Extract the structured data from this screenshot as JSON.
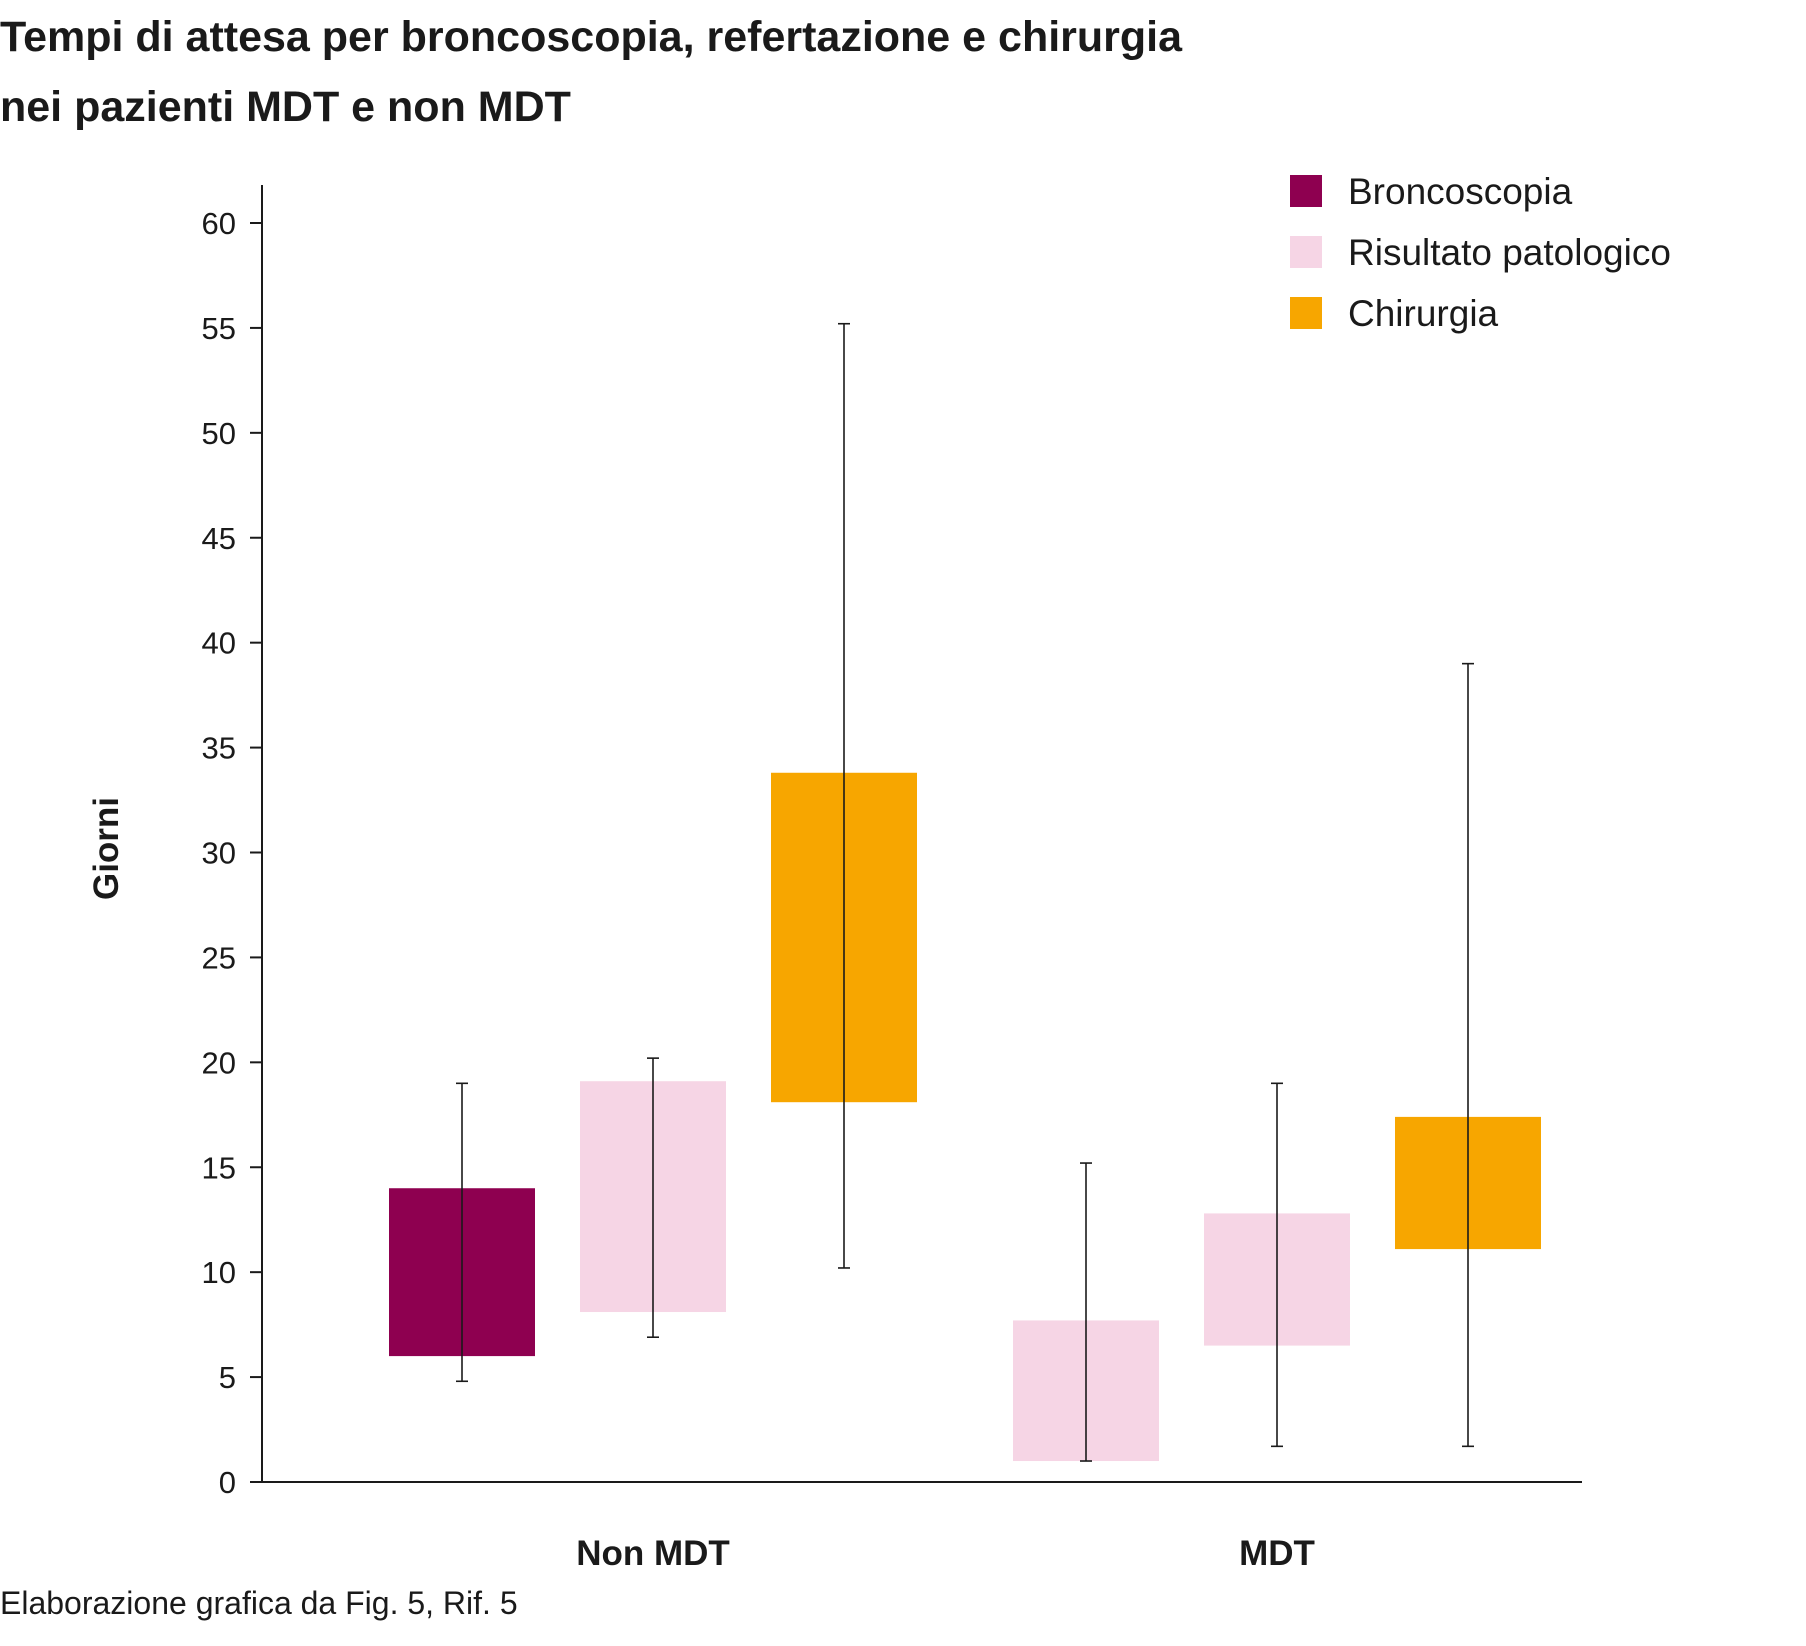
{
  "title_line1": "Tempi di attesa per broncoscopia, refertazione e chirurgia",
  "title_line2": "nei pazienti MDT e non MDT",
  "source": "Elaborazione grafica da Fig. 5, Rif. 5",
  "chart_data": {
    "type": "bar",
    "subtype": "floating-range-with-error-bars",
    "title": "Tempi di attesa per broncoscopia, refertazione e chirurgia nei pazienti MDT e non MDT",
    "xlabel": "",
    "ylabel": "Giorni",
    "ylim": [
      0,
      62
    ],
    "yticks": [
      0,
      5,
      10,
      15,
      20,
      25,
      30,
      35,
      40,
      45,
      50,
      55,
      60
    ],
    "grid": false,
    "legend_position": "top-right",
    "categories": [
      "Non MDT",
      "MDT"
    ],
    "series": [
      {
        "name": "Broncoscopia",
        "color": "#8e0050",
        "points": [
          {
            "category": "Non MDT",
            "low": 6,
            "high": 14,
            "err_low": 4.8,
            "err_high": 19
          },
          {
            "category": "MDT",
            "low": null,
            "high": null,
            "err_low": 1,
            "err_high": 15.2
          }
        ]
      },
      {
        "name": "Risultato patologico",
        "color": "#f6d5e5",
        "points": [
          {
            "category": "Non MDT",
            "low": 8.1,
            "high": 19.1,
            "err_low": 6.9,
            "err_high": 20.2
          },
          {
            "category": "MDT",
            "low": 6.5,
            "high": 12.8,
            "err_low": 1.7,
            "err_high": 19
          }
        ]
      },
      {
        "name": "Chirurgia",
        "color": "#f7a600",
        "points": [
          {
            "category": "Non MDT",
            "low": 18.1,
            "high": 33.8,
            "err_low": 10.2,
            "err_high": 55.2
          },
          {
            "category": "MDT",
            "low": 11.1,
            "high": 17.4,
            "err_low": 1.7,
            "err_high": 39
          }
        ]
      }
    ],
    "extra_boxes": [
      {
        "category": "MDT",
        "slot": 0,
        "color": "#f6d5e5",
        "low": 1,
        "high": 7.7
      }
    ]
  }
}
